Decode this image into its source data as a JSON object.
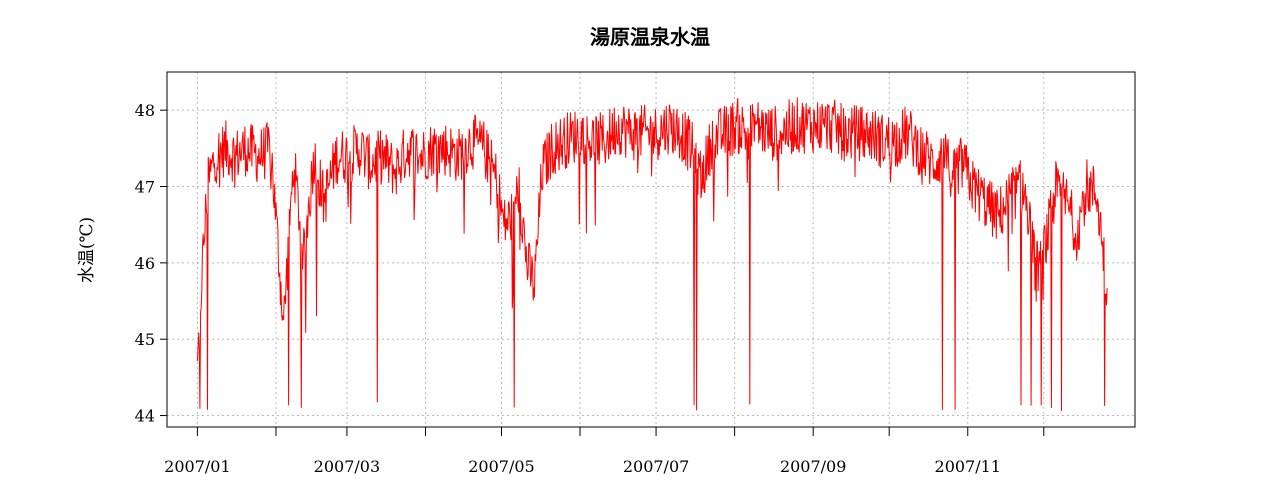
{
  "chart_data": {
    "type": "line",
    "title": "湯原温泉水温",
    "xlabel": "",
    "ylabel": "水温(℃)",
    "ylim": [
      43.85,
      48.5
    ],
    "xlim": [
      "2006-12-20",
      "2008-01-06"
    ],
    "grid": true,
    "line_color": "#ff0000",
    "yticks": [
      44,
      45,
      46,
      47,
      48
    ],
    "xticks": [
      {
        "date": "2007-01-01",
        "label": "2007/01"
      },
      {
        "date": "2007-02-01",
        "label": ""
      },
      {
        "date": "2007-03-01",
        "label": "2007/03"
      },
      {
        "date": "2007-04-01",
        "label": ""
      },
      {
        "date": "2007-05-01",
        "label": "2007/05"
      },
      {
        "date": "2007-06-01",
        "label": ""
      },
      {
        "date": "2007-07-01",
        "label": "2007/07"
      },
      {
        "date": "2007-08-01",
        "label": ""
      },
      {
        "date": "2007-09-01",
        "label": "2007/09"
      },
      {
        "date": "2007-10-01",
        "label": ""
      },
      {
        "date": "2007-11-01",
        "label": "2007/11"
      },
      {
        "date": "2007-12-01",
        "label": ""
      }
    ],
    "series": [
      {
        "x": [
          "2007-01-01",
          "2007-01-03",
          "2007-01-05",
          "2007-01-08",
          "2007-01-12",
          "2007-01-16",
          "2007-01-20",
          "2007-01-25",
          "2007-01-30",
          "2007-02-04",
          "2007-02-08",
          "2007-02-12",
          "2007-02-16",
          "2007-02-20",
          "2007-02-25",
          "2007-03-02",
          "2007-03-06",
          "2007-03-10",
          "2007-03-15",
          "2007-03-20",
          "2007-03-25",
          "2007-03-30",
          "2007-04-04",
          "2007-04-09",
          "2007-04-14",
          "2007-04-19",
          "2007-04-24",
          "2007-04-29",
          "2007-05-02",
          "2007-05-05",
          "2007-05-08",
          "2007-05-11",
          "2007-05-14",
          "2007-05-17",
          "2007-05-21",
          "2007-05-26",
          "2007-06-01",
          "2007-06-06",
          "2007-06-11",
          "2007-06-16",
          "2007-06-21",
          "2007-06-26",
          "2007-07-01",
          "2007-07-06",
          "2007-07-11",
          "2007-07-15",
          "2007-07-19",
          "2007-07-23",
          "2007-07-28",
          "2007-08-02",
          "2007-08-06",
          "2007-08-10",
          "2007-08-14",
          "2007-08-19",
          "2007-08-24",
          "2007-08-29",
          "2007-09-03",
          "2007-09-08",
          "2007-09-13",
          "2007-09-18",
          "2007-09-23",
          "2007-09-28",
          "2007-10-03",
          "2007-10-08",
          "2007-10-13",
          "2007-10-18",
          "2007-10-22",
          "2007-10-26",
          "2007-10-30",
          "2007-11-03",
          "2007-11-08",
          "2007-11-13",
          "2007-11-18",
          "2007-11-23",
          "2007-11-28",
          "2007-12-02",
          "2007-12-06",
          "2007-12-10",
          "2007-12-14",
          "2007-12-18",
          "2007-12-22",
          "2007-12-26"
        ],
        "y": [
          44.6,
          46.0,
          47.0,
          47.4,
          47.5,
          47.4,
          47.5,
          47.4,
          47.5,
          45.2,
          47.3,
          46.1,
          47.4,
          46.8,
          47.4,
          47.4,
          47.5,
          47.3,
          47.4,
          47.2,
          47.5,
          47.4,
          47.5,
          47.5,
          47.4,
          47.6,
          47.5,
          47.1,
          46.5,
          46.6,
          47.0,
          46.0,
          45.7,
          47.2,
          47.5,
          47.6,
          47.7,
          47.6,
          47.6,
          47.8,
          47.7,
          47.7,
          47.7,
          47.8,
          47.7,
          47.5,
          47.1,
          47.6,
          47.7,
          47.8,
          47.7,
          47.8,
          47.7,
          47.7,
          47.8,
          47.8,
          47.8,
          47.8,
          47.7,
          47.7,
          47.7,
          47.6,
          47.6,
          47.7,
          47.5,
          47.3,
          47.4,
          47.2,
          47.3,
          47.0,
          46.8,
          46.6,
          46.9,
          47.0,
          45.9,
          46.3,
          47.0,
          46.8,
          46.4,
          47.0,
          46.9,
          45.7
        ]
      }
    ],
    "dips": [
      {
        "x": "2007-01-02",
        "y": 44.05
      },
      {
        "x": "2007-01-05",
        "y": 44.05
      },
      {
        "x": "2007-02-06",
        "y": 44.1
      },
      {
        "x": "2007-02-11",
        "y": 44.05
      },
      {
        "x": "2007-02-17",
        "y": 45.3
      },
      {
        "x": "2007-03-13",
        "y": 44.15
      },
      {
        "x": "2007-05-06",
        "y": 44.1
      },
      {
        "x": "2007-07-16",
        "y": 44.1
      },
      {
        "x": "2007-07-17",
        "y": 44.05
      },
      {
        "x": "2007-08-07",
        "y": 44.1
      },
      {
        "x": "2007-10-22",
        "y": 44.05
      },
      {
        "x": "2007-10-27",
        "y": 44.05
      },
      {
        "x": "2007-11-22",
        "y": 44.1
      },
      {
        "x": "2007-11-26",
        "y": 44.1
      },
      {
        "x": "2007-11-30",
        "y": 44.1
      },
      {
        "x": "2007-12-04",
        "y": 44.05
      },
      {
        "x": "2007-12-08",
        "y": 44.05
      },
      {
        "x": "2007-12-25",
        "y": 44.1
      }
    ]
  }
}
